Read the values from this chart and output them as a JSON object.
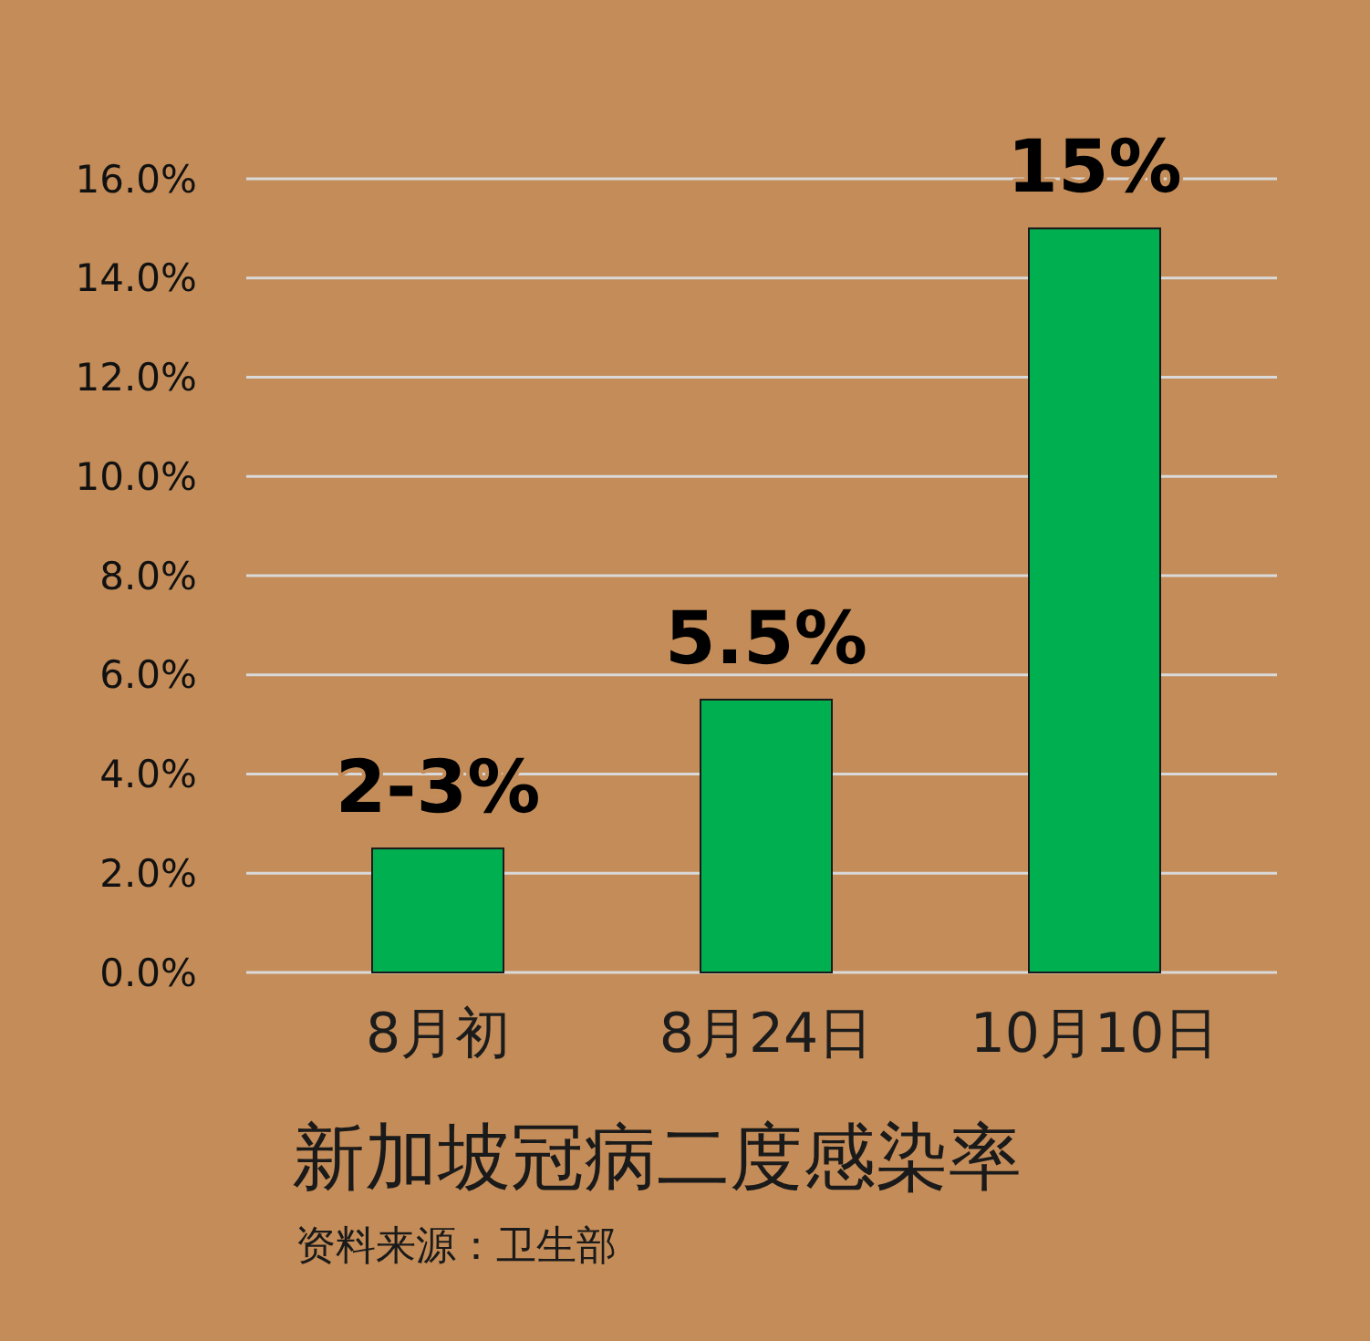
{
  "chart_data": {
    "type": "bar",
    "title": "新加坡冠病二度感染率",
    "categories": [
      "8月初",
      "8月24日",
      "10月10日"
    ],
    "values": [
      2.5,
      5.5,
      15
    ],
    "color": "#00b050",
    "value_labels": [
      "2-3%",
      "5.5%",
      "15%"
    ],
    "ylim": [
      0,
      16
    ],
    "yticks": [
      {
        "value": 0,
        "label": "0.0%"
      },
      {
        "value": 2,
        "label": "2.0%"
      },
      {
        "value": 4,
        "label": "4.0%"
      },
      {
        "value": 6,
        "label": "6.0%"
      },
      {
        "value": 8,
        "label": "8.0%"
      },
      {
        "value": 10,
        "label": "10.0%"
      },
      {
        "value": 12,
        "label": "12.0%"
      },
      {
        "value": 14,
        "label": "14.0%"
      },
      {
        "value": 16,
        "label": "16.0%"
      }
    ],
    "grid": "y",
    "annotations": [
      "资料来源：卫生部"
    ]
  }
}
